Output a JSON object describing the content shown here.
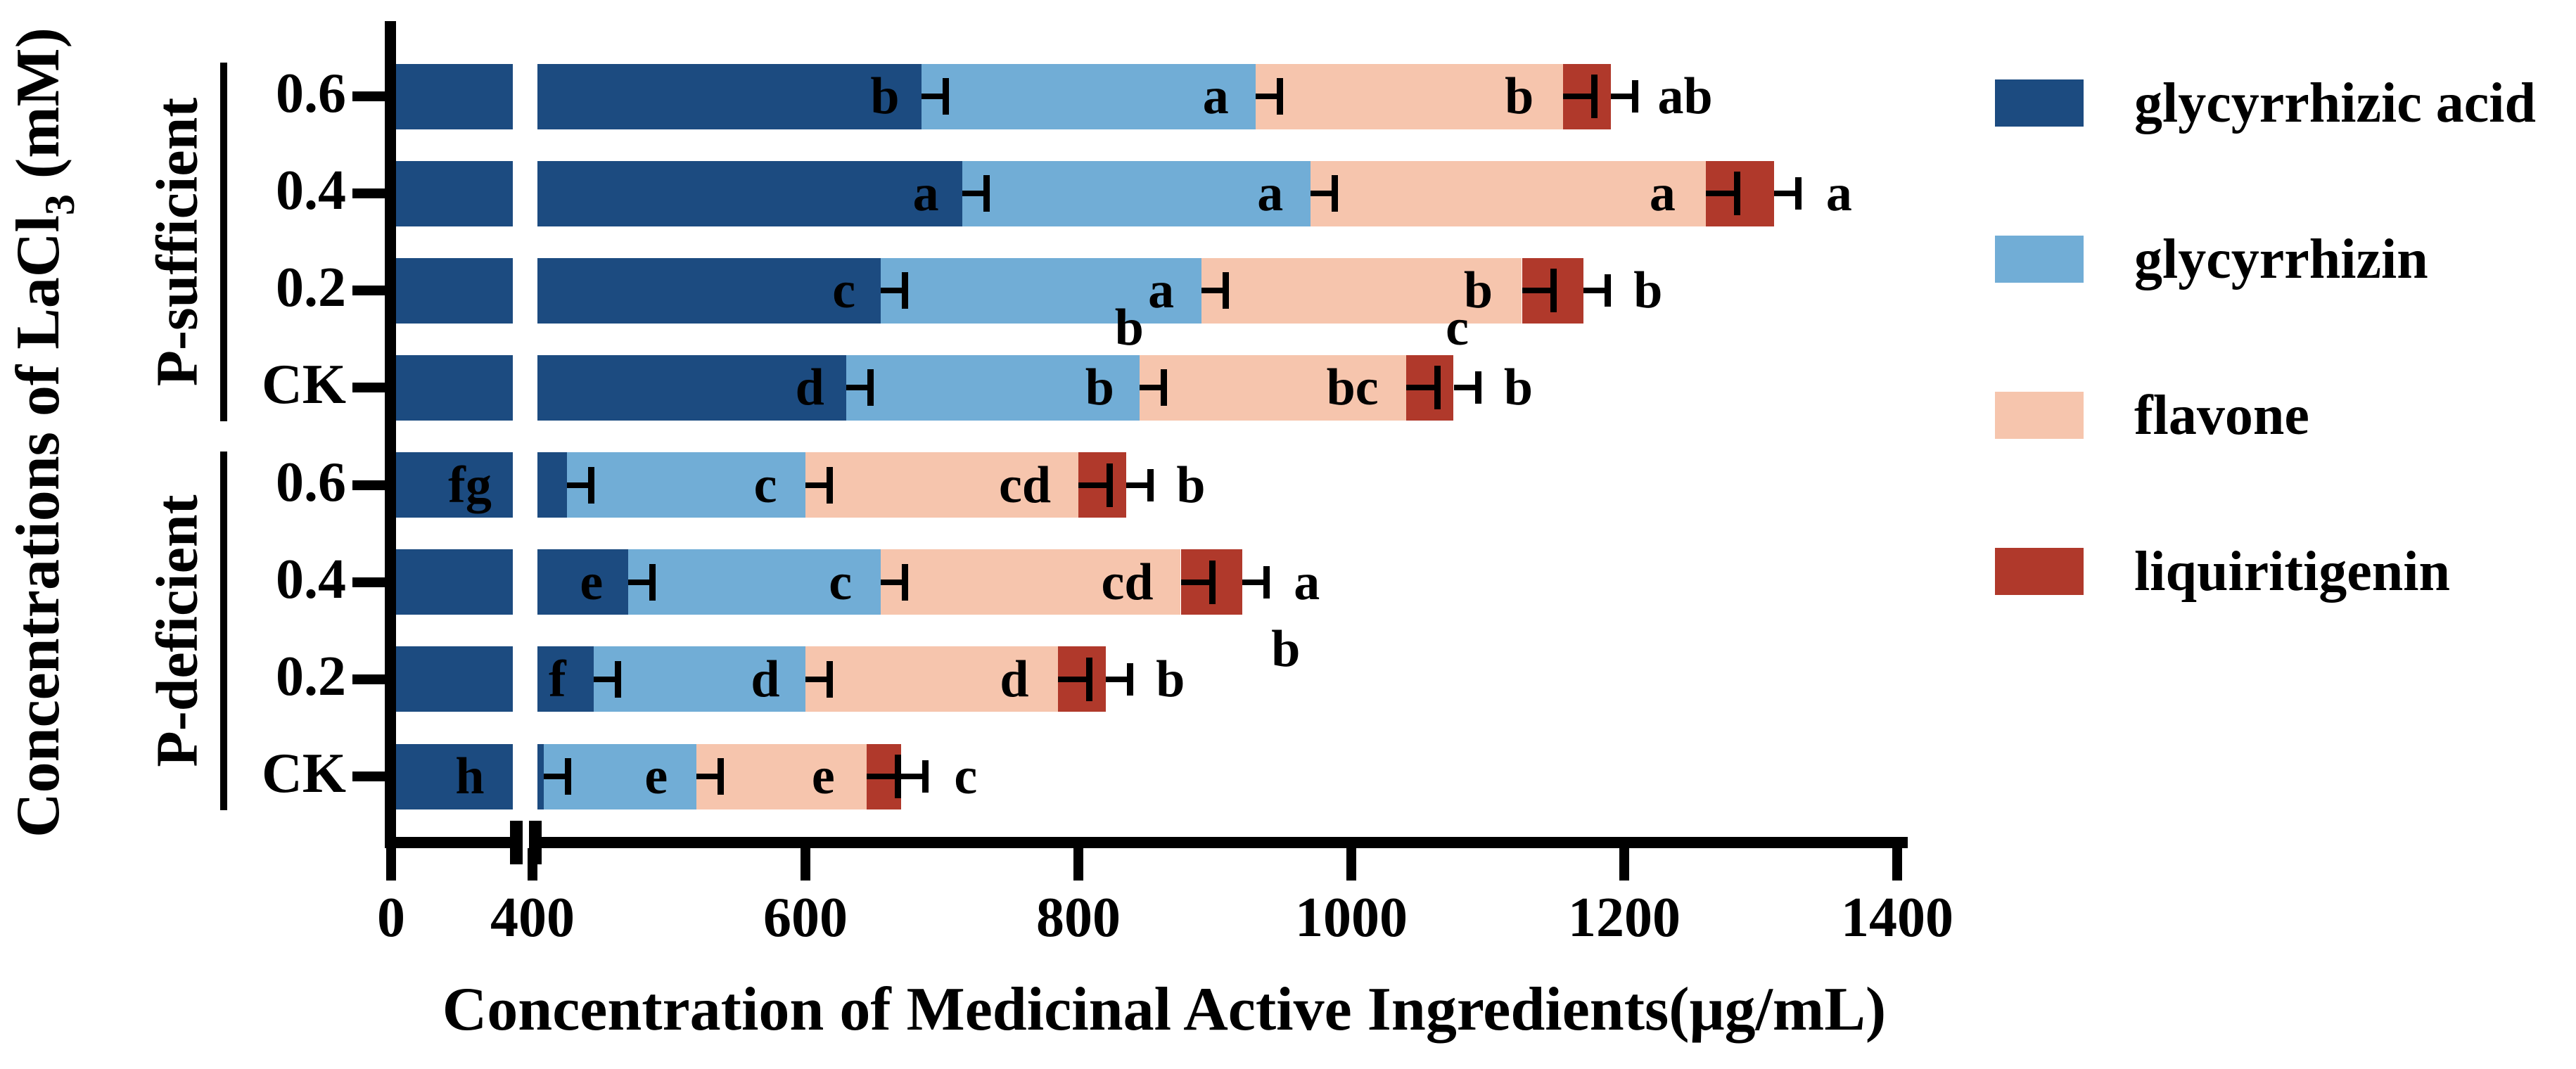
{
  "chart_data": {
    "type": "bar",
    "orientation": "horizontal",
    "stacked": true,
    "title": "",
    "xlabel": "Concentration of Medicinal Active Ingredients(μg/mL)",
    "ylabel": "Concentrations of LaCl3 (mM)",
    "ylabel_parts": {
      "prefix": "Concentrations of LaCl",
      "sub": "3",
      "suffix": " (mM)"
    },
    "x_ticks": [
      0,
      400,
      600,
      800,
      1000,
      1200,
      1400
    ],
    "xlim": [
      0,
      1400
    ],
    "x_axis_break": {
      "between": [
        0,
        400
      ]
    },
    "grid": false,
    "error_bars": true,
    "legend_position": "right",
    "series": [
      "glycyrrhizic acid",
      "glycyrrhizin",
      "flavone",
      "liquiritigenin"
    ],
    "legend": [
      {
        "label": "glycyrrhizic acid",
        "color": "#1C4B80"
      },
      {
        "label": "glycyrrhizin",
        "color": "#71ADD6"
      },
      {
        "label": "flavone",
        "color": "#F6C5AD"
      },
      {
        "label": "liquiritigenin",
        "color": "#B0392B"
      }
    ],
    "groups": [
      {
        "label": "P-sufficient",
        "categories": [
          "0.6",
          "0.4",
          "0.2",
          "CK"
        ]
      },
      {
        "label": "P-deficient",
        "categories": [
          "0.6",
          "0.4",
          "0.2",
          "CK"
        ]
      }
    ],
    "rows": [
      {
        "group": "P-sufficient",
        "category": "0.6",
        "values": [
          685,
          245,
          225,
          35
        ],
        "letters": [
          {
            "text": "b",
            "anchor": "ga"
          },
          {
            "text": "a",
            "anchor": "g"
          },
          {
            "text": "b",
            "anchor": "f"
          },
          {
            "text": "ab",
            "anchor": "after"
          }
        ]
      },
      {
        "group": "P-sufficient",
        "category": "0.4",
        "values": [
          715,
          255,
          290,
          50
        ],
        "letters": [
          {
            "text": "a",
            "anchor": "ga"
          },
          {
            "text": "a",
            "anchor": "g"
          },
          {
            "text": "a",
            "anchor": "f"
          },
          {
            "text": "a",
            "anchor": "after"
          }
        ]
      },
      {
        "group": "P-sufficient",
        "category": "0.2",
        "values": [
          655,
          235,
          235,
          45
        ],
        "letters": [
          {
            "text": "c",
            "anchor": "ga"
          },
          {
            "text": "a",
            "anchor": "g"
          },
          {
            "text": "b",
            "anchor": "f"
          },
          {
            "text": "b",
            "anchor": "after"
          }
        ]
      },
      {
        "group": "P-sufficient",
        "category": "CK",
        "values": [
          630,
          215,
          195,
          35
        ],
        "letters": [
          {
            "text": "d",
            "anchor": "ga"
          },
          {
            "text": "b",
            "anchor": "g"
          },
          {
            "text": "b",
            "anchor": "g-above"
          },
          {
            "text": "bc",
            "anchor": "f"
          },
          {
            "text": "c",
            "anchor": "l-above"
          },
          {
            "text": "b",
            "anchor": "after"
          }
        ]
      },
      {
        "group": "P-deficient",
        "category": "0.6",
        "values": [
          425,
          175,
          200,
          35
        ],
        "letters": [
          {
            "text": "fg",
            "anchor": "prebreak"
          },
          {
            "text": "c",
            "anchor": "g"
          },
          {
            "text": "cd",
            "anchor": "f"
          },
          {
            "text": "b",
            "anchor": "after"
          }
        ]
      },
      {
        "group": "P-deficient",
        "category": "0.4",
        "values": [
          470,
          185,
          220,
          45
        ],
        "letters": [
          {
            "text": "e",
            "anchor": "ga"
          },
          {
            "text": "c",
            "anchor": "g"
          },
          {
            "text": "cd",
            "anchor": "f"
          },
          {
            "text": "a",
            "anchor": "after"
          },
          {
            "text": "b",
            "anchor": "after-below"
          }
        ]
      },
      {
        "group": "P-deficient",
        "category": "0.2",
        "values": [
          445,
          155,
          185,
          35
        ],
        "letters": [
          {
            "text": "f",
            "anchor": "ga"
          },
          {
            "text": "d",
            "anchor": "g"
          },
          {
            "text": "d",
            "anchor": "f"
          },
          {
            "text": "b",
            "anchor": "after"
          }
        ]
      },
      {
        "group": "P-deficient",
        "category": "CK",
        "values": [
          408,
          112,
          125,
          25
        ],
        "letters": [
          {
            "text": "h",
            "anchor": "prebreak"
          },
          {
            "text": "e",
            "anchor": "g"
          },
          {
            "text": "e",
            "anchor": "f"
          },
          {
            "text": "c",
            "anchor": "after"
          }
        ]
      }
    ]
  }
}
